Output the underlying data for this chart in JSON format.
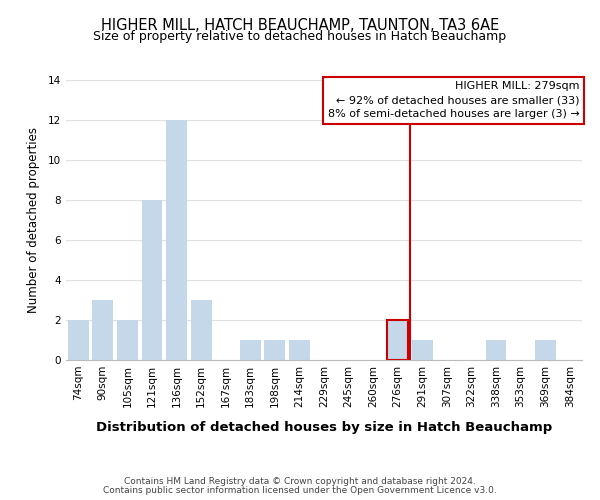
{
  "title": "HIGHER MILL, HATCH BEAUCHAMP, TAUNTON, TA3 6AE",
  "subtitle": "Size of property relative to detached houses in Hatch Beauchamp",
  "xlabel": "Distribution of detached houses by size in Hatch Beauchamp",
  "ylabel": "Number of detached properties",
  "bin_labels": [
    "74sqm",
    "90sqm",
    "105sqm",
    "121sqm",
    "136sqm",
    "152sqm",
    "167sqm",
    "183sqm",
    "198sqm",
    "214sqm",
    "229sqm",
    "245sqm",
    "260sqm",
    "276sqm",
    "291sqm",
    "307sqm",
    "322sqm",
    "338sqm",
    "353sqm",
    "369sqm",
    "384sqm"
  ],
  "bar_values": [
    2,
    3,
    2,
    8,
    12,
    3,
    0,
    1,
    1,
    1,
    0,
    0,
    0,
    2,
    1,
    0,
    0,
    1,
    0,
    1,
    0
  ],
  "bar_color": "#c5d8ea",
  "highlight_bar_index": 13,
  "vline_color": "#cc0000",
  "annotation_title": "HIGHER MILL: 279sqm",
  "annotation_line1": "← 92% of detached houses are smaller (33)",
  "annotation_line2": "8% of semi-detached houses are larger (3) →",
  "ylim": [
    0,
    14
  ],
  "yticks": [
    0,
    2,
    4,
    6,
    8,
    10,
    12,
    14
  ],
  "footer1": "Contains HM Land Registry data © Crown copyright and database right 2024.",
  "footer2": "Contains public sector information licensed under the Open Government Licence v3.0.",
  "bg_color": "#ffffff",
  "grid_color": "#e0e0e0",
  "title_fontsize": 10.5,
  "subtitle_fontsize": 9,
  "ylabel_fontsize": 8.5,
  "xlabel_fontsize": 9.5,
  "tick_fontsize": 7.5,
  "footer_fontsize": 6.5
}
